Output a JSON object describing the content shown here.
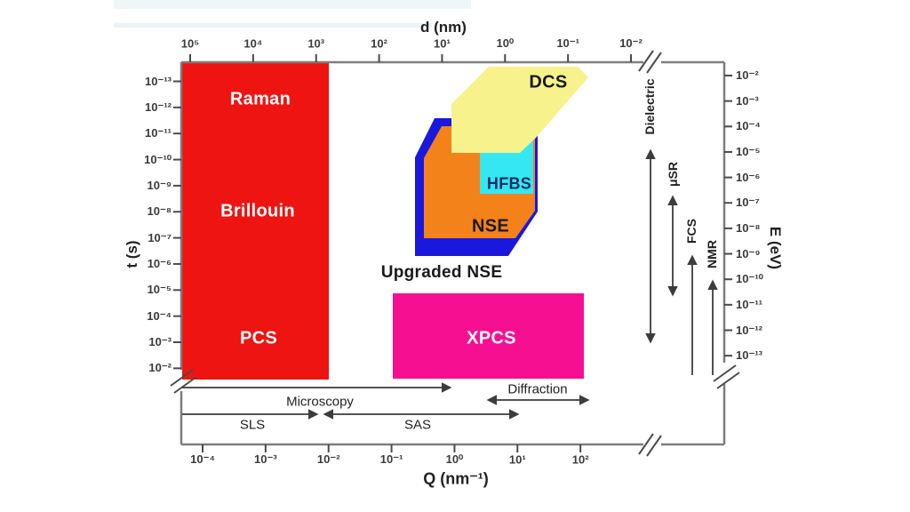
{
  "colors": {
    "red": "#ee1411",
    "orange": "#f3821b",
    "yellow": "#f7f28b",
    "cyan": "#35e7f2",
    "blue": "#1a18dc",
    "magenta": "#f70f92",
    "frame": "#7d7d7d",
    "arrow": "#3c3c3c",
    "hfbs_text": "#0a2d66"
  },
  "figure": {
    "axes": {
      "d": {
        "title": "d (nm)",
        "ticks": [
          "10⁵",
          "10⁴",
          "10³",
          "10²",
          "10¹",
          "10⁰",
          "10⁻¹",
          "10⁻²"
        ]
      },
      "q": {
        "title": "Q (nm⁻¹)",
        "ticks": [
          "10⁻⁴",
          "10⁻³",
          "10⁻²",
          "10⁻¹",
          "10⁰",
          "10¹",
          "10²"
        ]
      },
      "t": {
        "title": "t (s)",
        "ticks": [
          "10⁻¹³",
          "10⁻¹²",
          "10⁻¹¹",
          "10⁻¹⁰",
          "10⁻⁹",
          "10⁻⁸",
          "10⁻⁷",
          "10⁻⁶",
          "10⁻⁵",
          "10⁻⁴",
          "10⁻³",
          "10⁻²"
        ]
      },
      "e": {
        "title": "E (eV)",
        "ticks": [
          "10⁻²",
          "10⁻³",
          "10⁻⁴",
          "10⁻⁵",
          "10⁻⁶",
          "10⁻⁷",
          "10⁻⁸",
          "10⁻⁹",
          "10⁻¹⁰",
          "10⁻¹¹",
          "10⁻¹²",
          "10⁻¹³"
        ]
      }
    },
    "regions": {
      "raman": "Raman",
      "brillouin": "Brillouin",
      "pcs": "PCS",
      "dcs": "DCS",
      "hfbs": "HFBS",
      "nse": "NSE",
      "upgraded_nse": "Upgraded NSE",
      "xpcs": "XPCS"
    },
    "arrows": {
      "microscopy": "Microscopy",
      "diffraction": "Diffraction",
      "sls": "SLS",
      "sas": "SAS",
      "dielectric": "Dielectric",
      "musr": "μSR",
      "fcs": "FCS",
      "nmr": "NMR"
    }
  },
  "chart_data": {
    "type": "area",
    "description": "Log-log map of dynamic scattering/spectroscopy techniques: time t (s, left axis) and energy E (eV, right axis) versus momentum transfer Q (nm⁻¹, bottom axis) and length scale d (nm, top axis). Axes have break marks before the outer frame.",
    "x_bottom": {
      "label": "Q (nm⁻¹)",
      "scale": "log",
      "ticks": [
        0.0001,
        0.001,
        0.01,
        0.1,
        1,
        10,
        100
      ]
    },
    "x_top": {
      "label": "d (nm)",
      "scale": "log",
      "ticks": [
        100000,
        10000,
        1000,
        100,
        10,
        1,
        0.1,
        0.01
      ]
    },
    "y_left": {
      "label": "t (s)",
      "scale": "log",
      "inverted": true,
      "ticks": [
        1e-13,
        1e-12,
        1e-11,
        1e-10,
        1e-09,
        1e-08,
        1e-07,
        1e-06,
        1e-05,
        0.0001,
        0.001,
        0.01
      ]
    },
    "y_right": {
      "label": "E (eV)",
      "scale": "log",
      "ticks": [
        0.01,
        0.001,
        0.0001,
        1e-05,
        1e-06,
        1e-07,
        1e-08,
        1e-09,
        1e-10,
        1e-11,
        1e-12,
        1e-13
      ]
    },
    "regions": [
      {
        "name": "Raman / Brillouin / PCS",
        "color": "#ee1411",
        "Q_nm^-1": [
          5e-05,
          0.01
        ],
        "t_s": [
          2e-14,
          0.03
        ]
      },
      {
        "name": "DCS",
        "color": "#f7f28b",
        "Q_nm^-1": [
          0.9,
          130
        ],
        "t_s": [
          2e-14,
          6e-11
        ]
      },
      {
        "name": "NSE",
        "color": "#f3821b",
        "Q_nm^-1": [
          0.3,
          19
        ],
        "t_s": [
          5e-12,
          1e-07
        ]
      },
      {
        "name": "Upgraded NSE",
        "color": "#1a18dc",
        "Q_nm^-1": [
          0.23,
          21
        ],
        "t_s": [
          3e-12,
          5e-07
        ]
      },
      {
        "name": "HFBS",
        "color": "#35e7f2",
        "Q_nm^-1": [
          2.5,
          18
        ],
        "t_s": [
          2e-11,
          2e-09
        ]
      },
      {
        "name": "XPCS",
        "color": "#f70f92",
        "Q_nm^-1": [
          0.1,
          100
        ],
        "t_s": [
          1e-05,
          0.025
        ]
      }
    ],
    "q_range_arrows": [
      {
        "name": "Microscopy",
        "Q_nm^-1": [
          5e-05,
          0.9
        ],
        "heads": "right"
      },
      {
        "name": "Diffraction",
        "Q_nm^-1": [
          3.4,
          130
        ],
        "heads": "both"
      },
      {
        "name": "SLS",
        "Q_nm^-1": [
          5e-05,
          0.007
        ],
        "heads": "right"
      },
      {
        "name": "SAS",
        "Q_nm^-1": [
          0.009,
          10
        ],
        "heads": "both"
      }
    ],
    "t_range_arrows": [
      {
        "name": "Dielectric",
        "t_s": [
          4e-11,
          0.001
        ],
        "heads": "both"
      },
      {
        "name": "μSR",
        "t_s": [
          2.5e-09,
          1.8e-05
        ],
        "heads": "both"
      },
      {
        "name": "FCS",
        "t_s": [
          5e-07,
          0.02
        ],
        "heads": "top"
      },
      {
        "name": "NMR",
        "t_s": [
          4e-06,
          0.02
        ],
        "heads": "top"
      }
    ],
    "legend_position": "none",
    "grid": false
  }
}
